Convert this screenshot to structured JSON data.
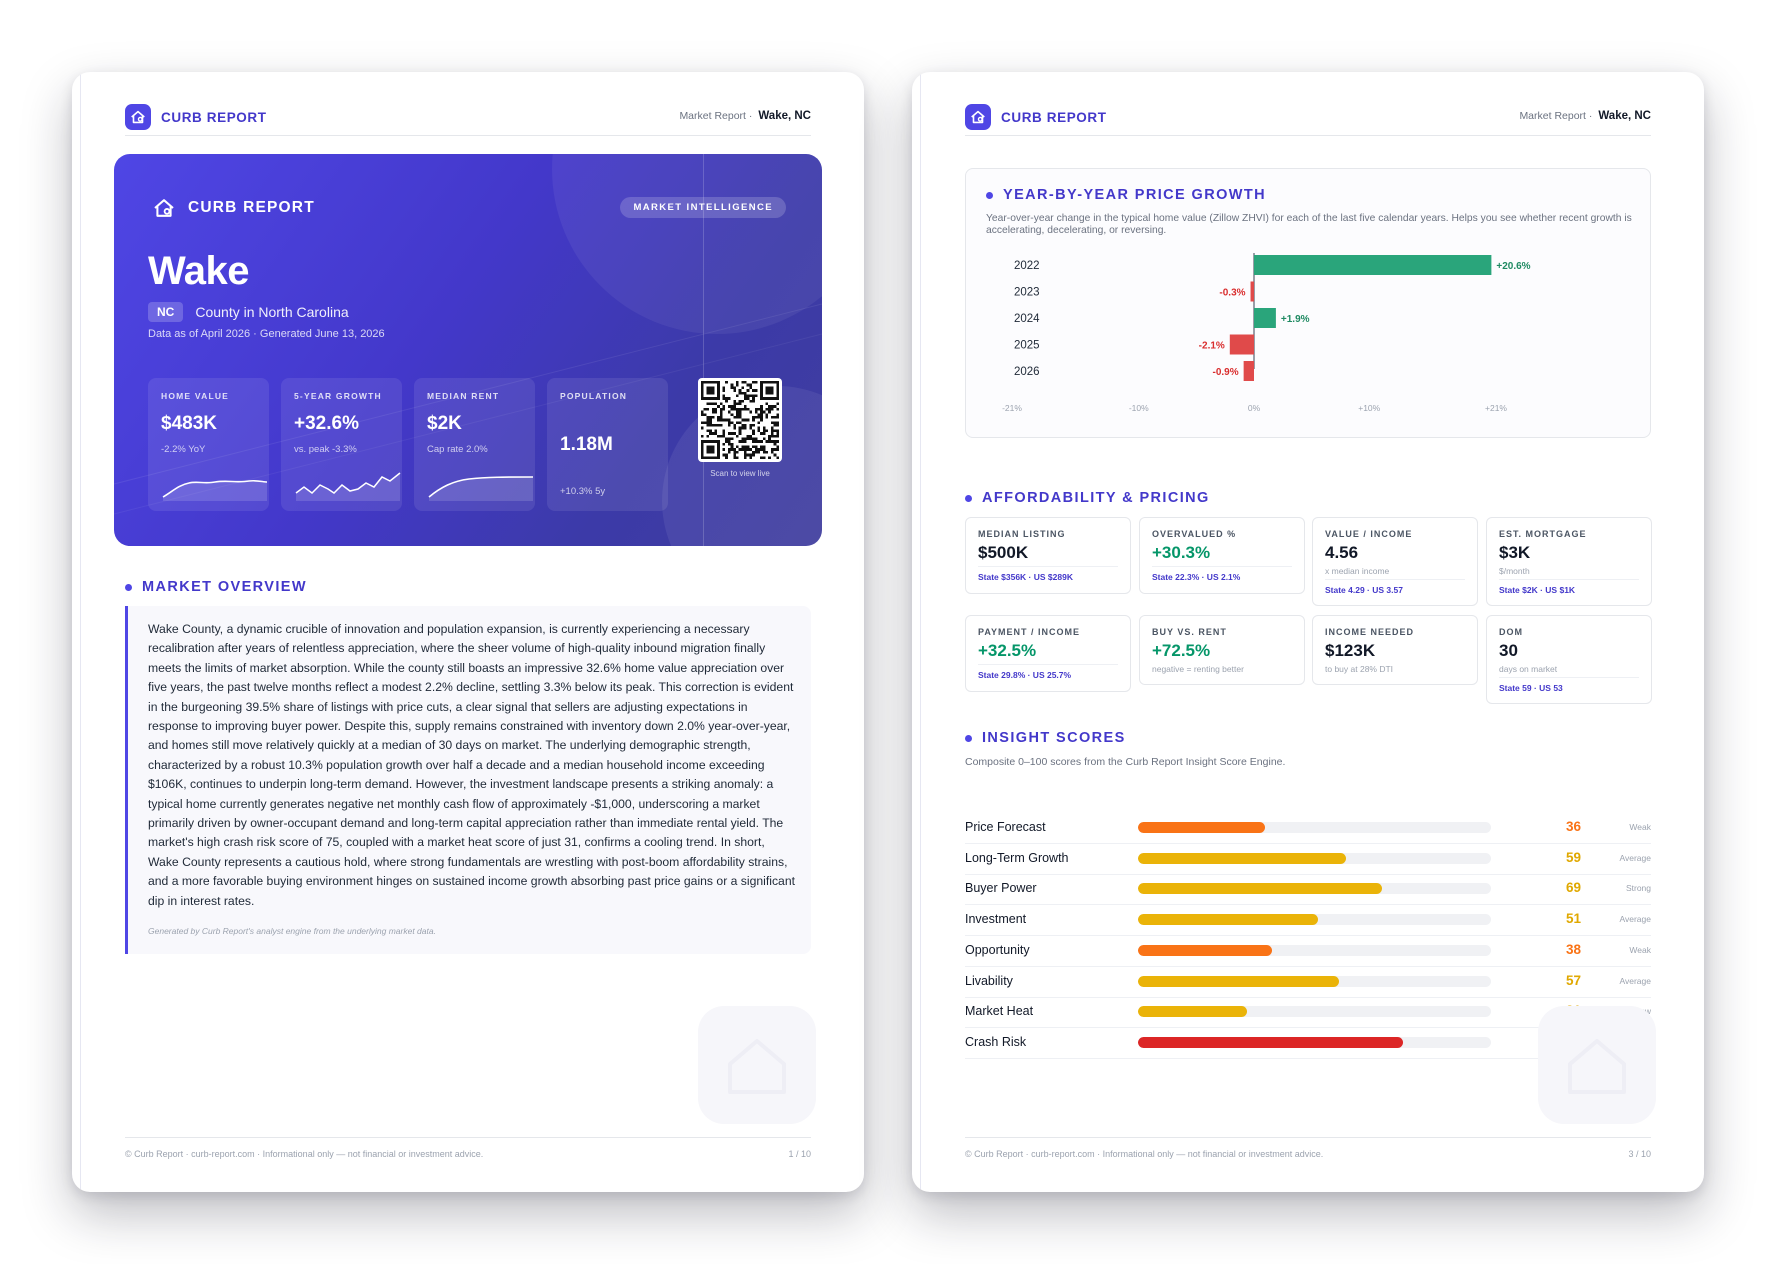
{
  "brand": {
    "name": "CURB REPORT"
  },
  "pages": [
    {
      "meta_label": "Market Report ·",
      "meta_location": "Wake, NC",
      "footer_left": "© Curb Report · curb-report.com · Informational only — not financial or investment advice.",
      "footer_right": "1 / 10"
    },
    {
      "meta_label": "Market Report ·",
      "meta_location": "Wake, NC",
      "footer_left": "© Curb Report · curb-report.com · Informational only — not financial or investment advice.",
      "footer_right": "3 / 10"
    }
  ],
  "hero": {
    "brand": "CURB REPORT",
    "pill": "MARKET INTELLIGENCE",
    "title": "Wake",
    "state": "NC",
    "description": "County in North Carolina",
    "date": "Data as of April 2026 · Generated June 13, 2026",
    "kpis": [
      {
        "label": "HOME VALUE",
        "value": "$483K",
        "note": "-2.2% YoY"
      },
      {
        "label": "5-YEAR GROWTH",
        "value": "+32.6%",
        "note": "vs. peak -3.3%"
      },
      {
        "label": "MEDIAN RENT",
        "value": "$2K",
        "note": "Cap rate 2.0%"
      },
      {
        "label": "POPULATION",
        "value": "1.18M",
        "note": "+10.3% 5y"
      }
    ],
    "qr_caption": "Scan to view live"
  },
  "overview": {
    "title": "MARKET OVERVIEW",
    "text": "Wake County, a dynamic crucible of innovation and population expansion, is currently experiencing a necessary recalibration after years of relentless appreciation, where the sheer volume of high-quality inbound migration finally meets the limits of market absorption. While the county still boasts an impressive 32.6% home value appreciation over five years, the past twelve months reflect a modest 2.2% decline, settling 3.3% below its peak. This correction is evident in the burgeoning 39.5% share of listings with price cuts, a clear signal that sellers are adjusting expectations in response to improving buyer power. Despite this, supply remains constrained with inventory down 2.0% year-over-year, and homes still move relatively quickly at a median of 30 days on market. The underlying demographic strength, characterized by a robust 10.3% population growth over half a decade and a median household income exceeding $106K, continues to underpin long-term demand. However, the investment landscape presents a striking anomaly: a typical home currently generates negative net monthly cash flow of approximately -$1,000, underscoring a market primarily driven by owner-occupant demand and long-term capital appreciation rather than immediate rental yield. The market's high crash risk score of 75, coupled with a market heat score of just 31, confirms a cooling trend. In short, Wake County represents a cautious hold, where strong fundamentals are wrestling with post-boom affordability strains, and a more favorable buying environment hinges on sustained income growth absorbing past price gains or a significant dip in interest rates.",
    "generated": "Generated by Curb Report's analyst engine from the underlying market data."
  },
  "yoy": {
    "title": "YEAR-BY-YEAR PRICE GROWTH",
    "description": "Year-over-year change in the typical home value (Zillow ZHVI) for each of the last five calendar years. Helps you see whether recent growth is accelerating, decelerating, or reversing."
  },
  "chart_data": {
    "type": "bar",
    "orientation": "horizontal",
    "categories": [
      "2022",
      "2023",
      "2024",
      "2025",
      "2026"
    ],
    "values": [
      20.6,
      -0.3,
      1.9,
      -2.1,
      -0.9
    ],
    "data_labels": [
      "+20.6%",
      "-0.3%",
      "+1.9%",
      "-2.1%",
      "-0.9%"
    ],
    "xlim": [
      -21,
      21
    ],
    "x_ticks": [
      -21,
      -10,
      0,
      10,
      21
    ],
    "x_tick_labels": [
      "-21%",
      "-10%",
      "0%",
      "+10%",
      "+21%"
    ],
    "positive_color": "#2aa57b",
    "negative_color": "#e04a4a"
  },
  "affordability": {
    "title": "AFFORDABILITY & PRICING",
    "cards": [
      {
        "label": "MEDIAN LISTING",
        "value": "$500K",
        "sub": "",
        "compare": "State $356K · US $289K"
      },
      {
        "label": "OVERVALUED %",
        "value": "+30.3%",
        "sub": "",
        "compare": "State 22.3% · US 2.1%"
      },
      {
        "label": "VALUE / INCOME",
        "value": "4.56",
        "sub": "x median income",
        "compare": "State 4.29 · US 3.57"
      },
      {
        "label": "EST. MORTGAGE",
        "value": "$3K",
        "sub": "$/month",
        "compare": "State $2K · US $1K"
      },
      {
        "label": "PAYMENT / INCOME",
        "value": "+32.5%",
        "sub": "",
        "compare": "State 29.8% · US 25.7%"
      },
      {
        "label": "BUY VS. RENT",
        "value": "+72.5%",
        "sub": "negative = renting better",
        "compare": ""
      },
      {
        "label": "INCOME NEEDED",
        "value": "$123K",
        "sub": "to buy at 28% DTI",
        "compare": ""
      },
      {
        "label": "DOM",
        "value": "30",
        "sub": "days on market",
        "compare": "State 59 · US 53"
      }
    ]
  },
  "scores": {
    "title": "INSIGHT SCORES",
    "description": "Composite 0–100 scores from the Curb Report Insight Score Engine.",
    "items": [
      {
        "name": "Price Forecast",
        "score": 36,
        "grade": "Weak",
        "color": "#f97316"
      },
      {
        "name": "Long-Term Growth",
        "score": 59,
        "grade": "Average",
        "color": "#eab308"
      },
      {
        "name": "Buyer Power",
        "score": 69,
        "grade": "Strong",
        "color": "#eab308"
      },
      {
        "name": "Investment",
        "score": 51,
        "grade": "Average",
        "color": "#eab308"
      },
      {
        "name": "Opportunity",
        "score": 38,
        "grade": "Weak",
        "color": "#f97316"
      },
      {
        "name": "Livability",
        "score": 57,
        "grade": "Average",
        "color": "#eab308"
      },
      {
        "name": "Market Heat",
        "score": 31,
        "grade": "Low",
        "color": "#eab308"
      },
      {
        "name": "Crash Risk",
        "score": 75,
        "grade": "Elevated",
        "color": "#dc2626"
      }
    ]
  }
}
